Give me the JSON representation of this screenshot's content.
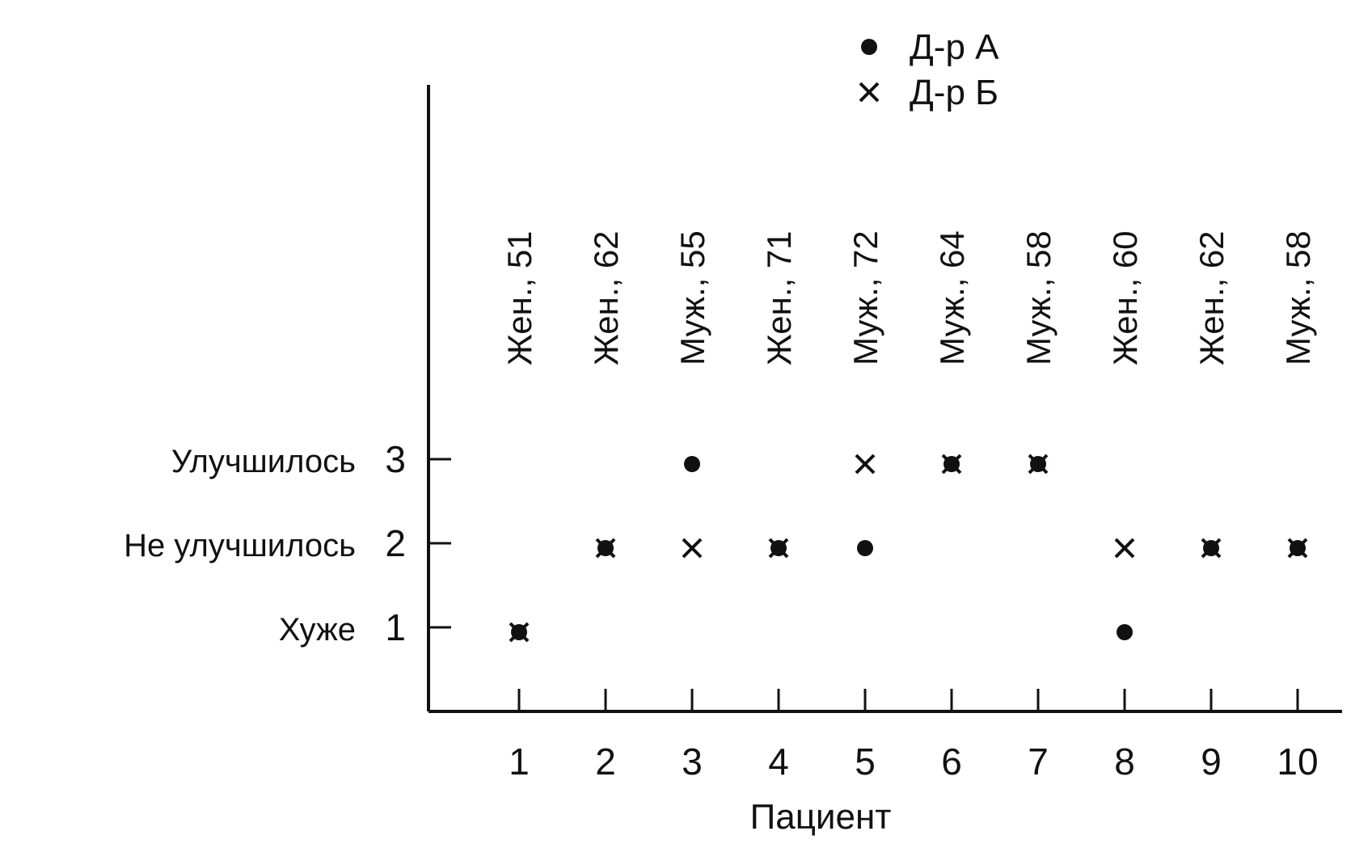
{
  "chart_data": {
    "type": "scatter",
    "title": "",
    "xlabel": "Пациент",
    "ylabel": "",
    "categories": [
      "1",
      "2",
      "3",
      "4",
      "5",
      "6",
      "7",
      "8",
      "9",
      "10"
    ],
    "patient_labels": [
      "Жен., 51",
      "Жен., 62",
      "Муж., 55",
      "Жен., 71",
      "Муж., 72",
      "Муж., 64",
      "Муж., 58",
      "Жен., 60",
      "Жен., 62",
      "Муж., 58"
    ],
    "y_ticks": [
      {
        "value": 3,
        "label": "3",
        "category": "Улучшилось"
      },
      {
        "value": 2,
        "label": "2",
        "category": "Не улучшилось"
      },
      {
        "value": 1,
        "label": "1",
        "category": "Хуже"
      }
    ],
    "ylim": [
      0,
      6
    ],
    "grid": false,
    "legend_position": "top-right",
    "series": [
      {
        "name": "Д-р А",
        "marker": "●",
        "marker_kind": "dot",
        "x": [
          1,
          2,
          3,
          4,
          5,
          6,
          7,
          8,
          9,
          10
        ],
        "y": [
          1,
          2,
          3,
          2,
          2,
          3,
          3,
          1,
          2,
          2
        ]
      },
      {
        "name": "Д-р Б",
        "marker": "×",
        "marker_kind": "cross",
        "x": [
          1,
          2,
          3,
          4,
          5,
          6,
          7,
          8,
          9,
          10
        ],
        "y": [
          1,
          2,
          2,
          2,
          3,
          3,
          3,
          2,
          2,
          2
        ]
      }
    ]
  }
}
